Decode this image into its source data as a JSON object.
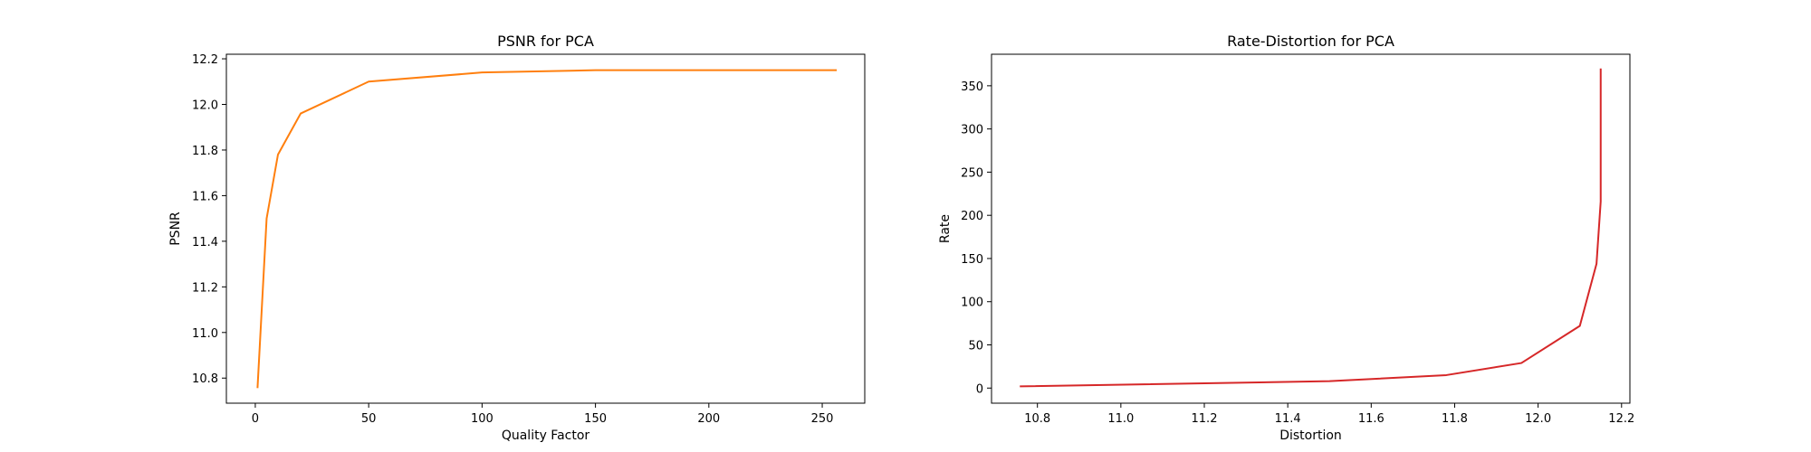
{
  "chart_data": [
    {
      "type": "line",
      "title": "PSNR for PCA",
      "xlabel": "Quality Factor",
      "ylabel": "PSNR",
      "xlim": [
        -12.75,
        268.75
      ],
      "ylim": [
        10.69,
        12.22
      ],
      "xticks": [
        0,
        50,
        100,
        150,
        200,
        250
      ],
      "xtick_labels": [
        "0",
        "50",
        "100",
        "150",
        "200",
        "250"
      ],
      "yticks": [
        10.8,
        11.0,
        11.2,
        11.4,
        11.6,
        11.8,
        12.0,
        12.2
      ],
      "ytick_labels": [
        "10.8",
        "11.0",
        "11.2",
        "11.4",
        "11.6",
        "11.8",
        "12.0",
        "12.2"
      ],
      "grid": false,
      "series": [
        {
          "color": "#ff7f0e",
          "x": [
            1,
            5,
            10,
            20,
            50,
            100,
            150,
            200,
            256
          ],
          "y": [
            10.76,
            11.5,
            11.78,
            11.96,
            12.1,
            12.14,
            12.15,
            12.15,
            12.15
          ]
        }
      ]
    },
    {
      "type": "line",
      "title": "Rate-Distortion for PCA",
      "xlabel": "Distortion",
      "ylabel": "Rate",
      "xlim": [
        10.69,
        12.22
      ],
      "ylim": [
        -17.5,
        386.5
      ],
      "xticks": [
        10.8,
        11.0,
        11.2,
        11.4,
        11.6,
        11.8,
        12.0,
        12.2
      ],
      "xtick_labels": [
        "10.8",
        "11.0",
        "11.2",
        "11.4",
        "11.6",
        "11.8",
        "12.0",
        "12.2"
      ],
      "yticks": [
        0,
        50,
        100,
        150,
        200,
        250,
        300,
        350
      ],
      "ytick_labels": [
        "0",
        "50",
        "100",
        "150",
        "200",
        "250",
        "300",
        "350"
      ],
      "grid": false,
      "series": [
        {
          "color": "#d62728",
          "x": [
            10.76,
            11.5,
            11.78,
            11.96,
            12.1,
            12.14,
            12.15,
            12.15,
            12.15
          ],
          "y": [
            2,
            8,
            15,
            29,
            72,
            144,
            216,
            288,
            369
          ]
        }
      ]
    }
  ]
}
